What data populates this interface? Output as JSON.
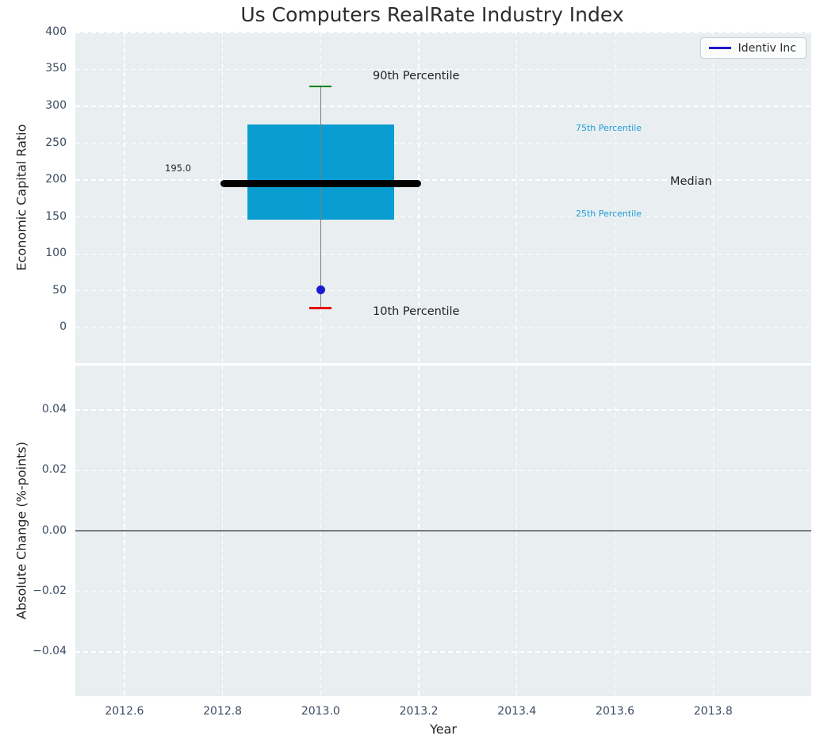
{
  "title": "Us Computers RealRate Industry Index",
  "legend": {
    "label": "Identiv Inc"
  },
  "annotations": {
    "p90": "90th Percentile",
    "p75": "75th Percentile",
    "median": "Median",
    "p25": "25th Percentile",
    "p10": "10th Percentile",
    "median_value": "195.0"
  },
  "colors": {
    "plot_bg": "#e9eef0",
    "grid": "#ffffff",
    "box_fill": "#0a9dd2",
    "median_line": "#000000",
    "whisker": "#7d7d7d",
    "cap_90": "#008000",
    "cap_10": "#e60000",
    "dot": "#1a1acf",
    "legend_line": "#1a1acf",
    "tick_label": "#3d4c63",
    "percentile_label": "#1d9ed6",
    "zero_line": "#000000"
  },
  "chart_data": [
    {
      "type": "box",
      "title": "Us Computers RealRate Industry Index",
      "ylabel": "Economic Capital Ratio",
      "xlim": [
        2012.5,
        2014.0
      ],
      "ylim": [
        -48,
        401
      ],
      "yticks": [
        400,
        350,
        300,
        250,
        200,
        150,
        100,
        50,
        0
      ],
      "grid": true,
      "legend_position": "upper right",
      "x_center": 2013.0,
      "box": {
        "p90": 327,
        "p75": 275,
        "median": 195,
        "p25": 146,
        "p10": 27,
        "box_left": 2012.85,
        "box_right": 2013.15,
        "median_left": 2012.795,
        "median_right": 2013.205
      },
      "series": [
        {
          "name": "Identiv Inc",
          "type": "scatter",
          "points": [
            {
              "x": 2013.0,
              "y": 51
            }
          ]
        }
      ]
    },
    {
      "type": "line",
      "xlabel": "Year",
      "ylabel": "Absolute Change (%-points)",
      "xlim": [
        2012.5,
        2014.0
      ],
      "ylim": [
        -0.0547,
        0.0547
      ],
      "yticks": [
        0.04,
        0.02,
        0.0,
        -0.02,
        -0.04
      ],
      "ytick_labels": [
        "0.04",
        "0.02",
        "0.00",
        "−0.02",
        "−0.04"
      ],
      "xticks": [
        2012.6,
        2012.8,
        2013.0,
        2013.2,
        2013.4,
        2013.6,
        2013.8
      ],
      "xtick_labels": [
        "2012.6",
        "2012.8",
        "2013.0",
        "2013.2",
        "2013.4",
        "2013.6",
        "2013.8"
      ],
      "zero_line": 0.0,
      "grid": true,
      "series": []
    }
  ]
}
